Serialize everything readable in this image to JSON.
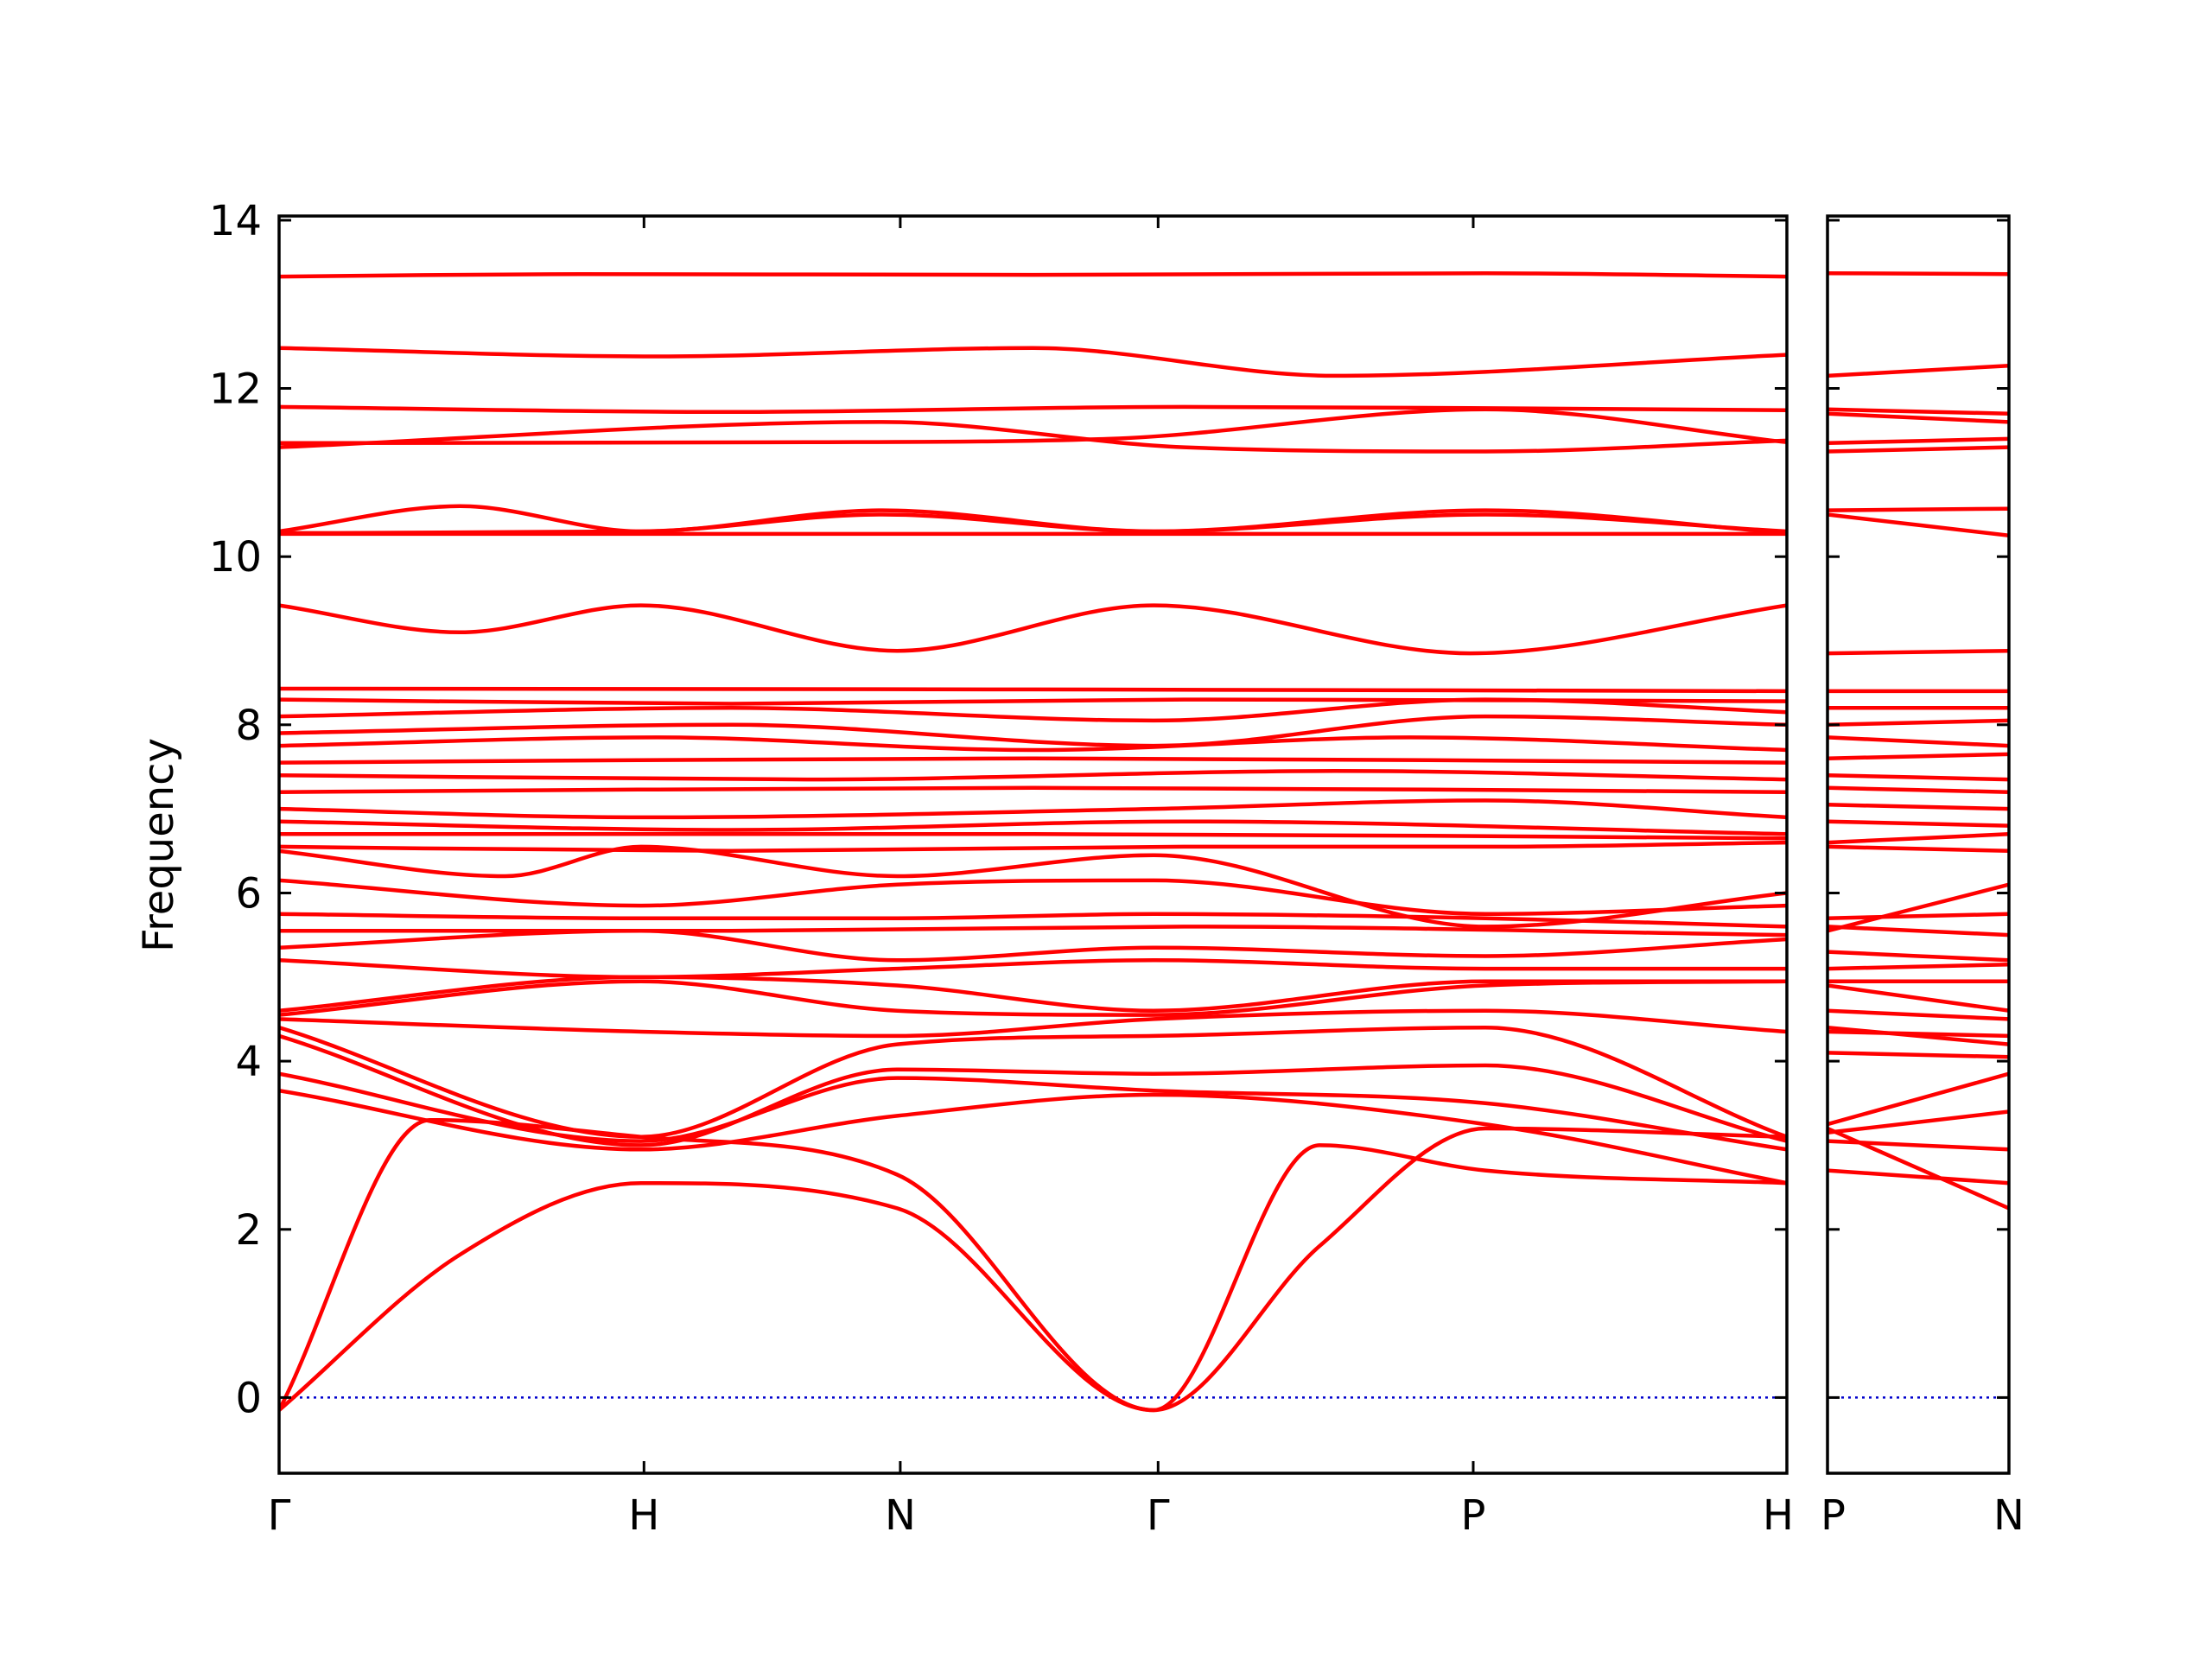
{
  "chart_data": {
    "type": "line",
    "ylabel": "Frequency",
    "ylim": [
      -0.9,
      14.05
    ],
    "yticks": [
      0,
      2,
      4,
      6,
      8,
      10,
      12,
      14
    ],
    "grid": false,
    "colors": {
      "bands": "#ff0000",
      "zero_line": "#0000cc",
      "frame": "#000000"
    },
    "panels": [
      {
        "id": "left",
        "path": [
          "Γ",
          "H",
          "N",
          "Γ",
          "P",
          "H"
        ],
        "xlim": [
          0,
          1
        ],
        "segment_ends": [
          0.242,
          0.412,
          0.583,
          0.792,
          1.0
        ],
        "bands": [
          {
            "x": [
              0,
              0.2,
              0.5,
              0.8,
              1
            ],
            "y": [
              13.33,
              13.36,
              13.35,
              13.37,
              13.33
            ]
          },
          {
            "x": [
              0,
              0.25,
              0.5,
              0.7,
              1
            ],
            "y": [
              12.48,
              12.38,
              12.48,
              12.15,
              12.4
            ]
          },
          {
            "x": [
              0,
              0.3,
              0.6,
              1
            ],
            "y": [
              11.78,
              11.72,
              11.78,
              11.74
            ]
          },
          {
            "x": [
              0,
              0.35,
              0.55,
              0.8,
              1
            ],
            "y": [
              11.35,
              11.36,
              11.4,
              11.75,
              11.36
            ]
          },
          {
            "x": [
              0,
              0.4,
              0.6,
              0.8,
              1
            ],
            "y": [
              11.3,
              11.6,
              11.3,
              11.25,
              11.38
            ]
          },
          {
            "x": [
              0,
              0.12,
              0.24,
              0.4,
              0.58,
              0.8,
              1
            ],
            "y": [
              10.3,
              10.6,
              10.3,
              10.55,
              10.3,
              10.55,
              10.28
            ]
          },
          {
            "x": [
              0,
              0.24,
              0.4,
              0.58,
              0.8,
              1
            ],
            "y": [
              10.28,
              10.3,
              10.5,
              10.3,
              10.5,
              10.3
            ]
          },
          {
            "x": [
              0,
              0.5,
              1
            ],
            "y": [
              10.27,
              10.27,
              10.27
            ]
          },
          {
            "x": [
              0,
              0.12,
              0.24,
              0.41,
              0.58,
              0.79,
              1
            ],
            "y": [
              9.42,
              9.1,
              9.42,
              8.88,
              9.42,
              8.85,
              9.42
            ]
          },
          {
            "x": [
              0,
              0.5,
              1
            ],
            "y": [
              8.43,
              8.42,
              8.4
            ]
          },
          {
            "x": [
              0,
              0.3,
              0.6,
              1
            ],
            "y": [
              8.3,
              8.25,
              8.3,
              8.28
            ]
          },
          {
            "x": [
              0,
              0.3,
              0.58,
              0.8,
              1
            ],
            "y": [
              8.1,
              8.2,
              8.05,
              8.3,
              8.15
            ]
          },
          {
            "x": [
              0,
              0.3,
              0.58,
              0.8,
              1
            ],
            "y": [
              7.9,
              8.0,
              7.75,
              8.1,
              8.0
            ]
          },
          {
            "x": [
              0,
              0.25,
              0.5,
              0.75,
              1
            ],
            "y": [
              7.75,
              7.85,
              7.7,
              7.85,
              7.7
            ]
          },
          {
            "x": [
              0,
              0.5,
              1
            ],
            "y": [
              7.55,
              7.6,
              7.55
            ]
          },
          {
            "x": [
              0,
              0.35,
              0.7,
              1
            ],
            "y": [
              7.4,
              7.35,
              7.45,
              7.35
            ]
          },
          {
            "x": [
              0,
              0.5,
              1
            ],
            "y": [
              7.2,
              7.25,
              7.2
            ]
          },
          {
            "x": [
              0,
              0.24,
              0.58,
              0.8,
              1
            ],
            "y": [
              7.0,
              6.9,
              7.0,
              7.1,
              6.9
            ]
          },
          {
            "x": [
              0,
              0.3,
              0.6,
              1
            ],
            "y": [
              6.85,
              6.75,
              6.85,
              6.7
            ]
          },
          {
            "x": [
              0,
              0.5,
              1
            ],
            "y": [
              6.7,
              6.7,
              6.65
            ]
          },
          {
            "x": [
              0,
              0.3,
              0.6,
              0.8,
              1
            ],
            "y": [
              6.55,
              6.5,
              6.55,
              6.55,
              6.6
            ]
          },
          {
            "x": [
              0,
              0.15,
              0.24,
              0.41,
              0.58,
              0.8,
              1
            ],
            "y": [
              6.5,
              6.2,
              6.55,
              6.2,
              6.45,
              5.6,
              6.0
            ]
          },
          {
            "x": [
              0,
              0.24,
              0.41,
              0.58,
              0.8,
              1
            ],
            "y": [
              6.15,
              5.85,
              6.1,
              6.15,
              5.75,
              5.85
            ]
          },
          {
            "x": [
              0,
              0.24,
              0.41,
              0.58,
              0.8,
              1
            ],
            "y": [
              5.75,
              5.7,
              5.7,
              5.75,
              5.7,
              5.6
            ]
          },
          {
            "x": [
              0,
              0.3,
              0.6,
              1
            ],
            "y": [
              5.55,
              5.55,
              5.6,
              5.5
            ]
          },
          {
            "x": [
              0,
              0.24,
              0.41,
              0.58,
              0.8,
              1
            ],
            "y": [
              5.35,
              5.55,
              5.2,
              5.35,
              5.25,
              5.45
            ]
          },
          {
            "x": [
              0,
              0.24,
              0.41,
              0.58,
              0.8,
              1
            ],
            "y": [
              5.2,
              5.0,
              5.1,
              5.2,
              5.1,
              5.1
            ]
          },
          {
            "x": [
              0,
              0.24,
              0.41,
              0.58,
              0.8,
              1
            ],
            "y": [
              4.6,
              5.0,
              4.9,
              4.6,
              4.95,
              4.95
            ]
          },
          {
            "x": [
              0,
              0.24,
              0.41,
              0.58,
              0.8,
              1
            ],
            "y": [
              4.55,
              4.95,
              4.6,
              4.55,
              4.9,
              4.95
            ]
          },
          {
            "x": [
              0,
              0.24,
              0.41,
              0.58,
              0.8,
              1
            ],
            "y": [
              4.5,
              4.35,
              4.3,
              4.5,
              4.6,
              4.35
            ]
          },
          {
            "x": [
              0,
              0.24,
              0.41,
              0.58,
              0.8,
              1
            ],
            "y": [
              4.4,
              3.1,
              4.2,
              4.3,
              4.4,
              3.1
            ]
          },
          {
            "x": [
              0,
              0.24,
              0.41,
              0.58,
              0.8,
              1
            ],
            "y": [
              4.3,
              3.0,
              3.9,
              3.85,
              3.95,
              3.05
            ]
          },
          {
            "x": [
              0,
              0.24,
              0.41,
              0.58,
              0.8,
              1
            ],
            "y": [
              3.85,
              3.05,
              3.8,
              3.65,
              3.5,
              2.95
            ]
          },
          {
            "x": [
              0,
              0.24,
              0.41,
              0.58,
              0.8,
              1
            ],
            "y": [
              3.65,
              2.95,
              3.35,
              3.6,
              3.25,
              2.55
            ]
          },
          {
            "x": [
              0,
              0.1,
              0.24,
              0.41,
              0.58,
              0.69,
              0.8,
              1
            ],
            "y": [
              -0.15,
              3.3,
              3.1,
              2.65,
              -0.15,
              3.0,
              2.7,
              2.55
            ]
          },
          {
            "x": [
              0,
              0.12,
              0.24,
              0.41,
              0.58,
              0.69,
              0.8,
              1
            ],
            "y": [
              -0.15,
              1.7,
              2.55,
              2.25,
              -0.15,
              1.8,
              3.2,
              3.1
            ]
          }
        ]
      },
      {
        "id": "right",
        "path": [
          "P",
          "N"
        ],
        "xlim": [
          0,
          1
        ],
        "segment_ends": [
          1.0
        ],
        "bands": [
          {
            "x": [
              0,
              1
            ],
            "y": [
              13.37,
              13.36
            ]
          },
          {
            "x": [
              0,
              1
            ],
            "y": [
              12.15,
              12.27
            ]
          },
          {
            "x": [
              0,
              1
            ],
            "y": [
              11.75,
              11.7
            ]
          },
          {
            "x": [
              0,
              1
            ],
            "y": [
              11.7,
              11.6
            ]
          },
          {
            "x": [
              0,
              1
            ],
            "y": [
              11.35,
              11.4
            ]
          },
          {
            "x": [
              0,
              1
            ],
            "y": [
              11.25,
              11.3
            ]
          },
          {
            "x": [
              0,
              1
            ],
            "y": [
              10.55,
              10.57
            ]
          },
          {
            "x": [
              0,
              1
            ],
            "y": [
              10.5,
              10.25
            ]
          },
          {
            "x": [
              0,
              1
            ],
            "y": [
              8.85,
              8.88
            ]
          },
          {
            "x": [
              0,
              1
            ],
            "y": [
              8.4,
              8.4
            ]
          },
          {
            "x": [
              0,
              1
            ],
            "y": [
              8.2,
              8.2
            ]
          },
          {
            "x": [
              0,
              1
            ],
            "y": [
              8.0,
              8.05
            ]
          },
          {
            "x": [
              0,
              1
            ],
            "y": [
              7.85,
              7.75
            ]
          },
          {
            "x": [
              0,
              1
            ],
            "y": [
              7.6,
              7.65
            ]
          },
          {
            "x": [
              0,
              1
            ],
            "y": [
              7.4,
              7.35
            ]
          },
          {
            "x": [
              0,
              1
            ],
            "y": [
              7.25,
              7.2
            ]
          },
          {
            "x": [
              0,
              1
            ],
            "y": [
              7.05,
              7.0
            ]
          },
          {
            "x": [
              0,
              1
            ],
            "y": [
              6.85,
              6.8
            ]
          },
          {
            "x": [
              0,
              1
            ],
            "y": [
              6.6,
              6.7
            ]
          },
          {
            "x": [
              0,
              1
            ],
            "y": [
              6.55,
              6.5
            ]
          },
          {
            "x": [
              0,
              1
            ],
            "y": [
              5.55,
              6.1
            ]
          },
          {
            "x": [
              0,
              1
            ],
            "y": [
              5.7,
              5.75
            ]
          },
          {
            "x": [
              0,
              1
            ],
            "y": [
              5.6,
              5.5
            ]
          },
          {
            "x": [
              0,
              1
            ],
            "y": [
              5.3,
              5.2
            ]
          },
          {
            "x": [
              0,
              1
            ],
            "y": [
              5.1,
              5.15
            ]
          },
          {
            "x": [
              0,
              1
            ],
            "y": [
              4.95,
              4.95
            ]
          },
          {
            "x": [
              0,
              1
            ],
            "y": [
              4.9,
              4.6
            ]
          },
          {
            "x": [
              0,
              1
            ],
            "y": [
              4.6,
              4.5
            ]
          },
          {
            "x": [
              0,
              1
            ],
            "y": [
              4.4,
              4.2
            ]
          },
          {
            "x": [
              0,
              1
            ],
            "y": [
              4.35,
              4.3
            ]
          },
          {
            "x": [
              0,
              1
            ],
            "y": [
              4.1,
              4.05
            ]
          },
          {
            "x": [
              0,
              1
            ],
            "y": [
              3.25,
              3.85
            ]
          },
          {
            "x": [
              0,
              1
            ],
            "y": [
              3.15,
              3.4
            ]
          },
          {
            "x": [
              0,
              1
            ],
            "y": [
              3.05,
              2.95
            ]
          },
          {
            "x": [
              0,
              1
            ],
            "y": [
              2.7,
              2.55
            ]
          },
          {
            "x": [
              0,
              1
            ],
            "y": [
              3.2,
              2.25
            ]
          }
        ]
      }
    ]
  }
}
